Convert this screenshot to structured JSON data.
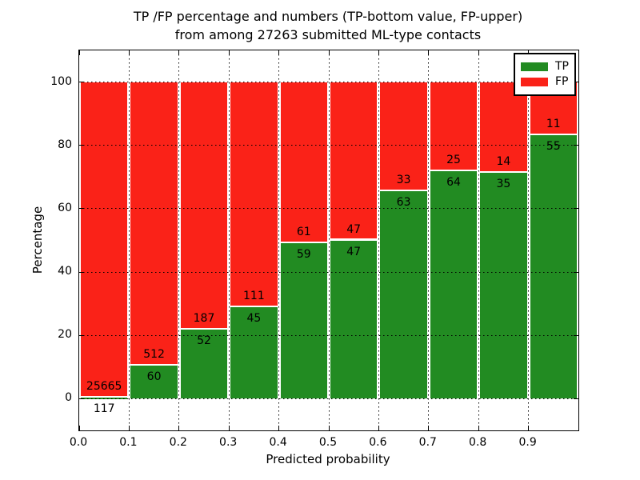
{
  "chart_data": {
    "type": "bar",
    "stacked": true,
    "orientation": "vertical",
    "title_line1": "TP /FP percentage and numbers (TP-bottom value, FP-upper)",
    "title_line2": "from among 27263 submitted ML-type contacts",
    "xlabel": "Predicted probability",
    "ylabel": "Percentage",
    "xlim": [
      0,
      1
    ],
    "ylim": [
      -10,
      110
    ],
    "grid": "dotted, drawn above bars",
    "x_ticks": [
      "0.0",
      "0.1",
      "0.2",
      "0.3",
      "0.4",
      "0.5",
      "0.6",
      "0.7",
      "0.8",
      "0.9"
    ],
    "y_ticks": [
      0,
      20,
      40,
      60,
      80,
      100
    ],
    "units": "percent of bin stacked to 100; labels show raw counts (TP below boundary, FP above)",
    "series": [
      {
        "name": "TP",
        "color": "#228b22"
      },
      {
        "name": "FP",
        "color": "#fa2218"
      }
    ],
    "bins": [
      {
        "x0": 0.0,
        "x1": 0.1,
        "tp": 117,
        "fp": 25665
      },
      {
        "x0": 0.1,
        "x1": 0.2,
        "tp": 60,
        "fp": 512
      },
      {
        "x0": 0.2,
        "x1": 0.3,
        "tp": 52,
        "fp": 187
      },
      {
        "x0": 0.3,
        "x1": 0.4,
        "tp": 45,
        "fp": 111
      },
      {
        "x0": 0.4,
        "x1": 0.5,
        "tp": 59,
        "fp": 61
      },
      {
        "x0": 0.5,
        "x1": 0.6,
        "tp": 47,
        "fp": 47
      },
      {
        "x0": 0.6,
        "x1": 0.7,
        "tp": 63,
        "fp": 33
      },
      {
        "x0": 0.7,
        "x1": 0.8,
        "tp": 64,
        "fp": 25
      },
      {
        "x0": 0.8,
        "x1": 0.9,
        "tp": 35,
        "fp": 14
      },
      {
        "x0": 0.9,
        "x1": 1.0,
        "tp": 55,
        "fp": 11
      }
    ],
    "legend": {
      "position": "upper right",
      "entries": [
        {
          "label": "TP",
          "color": "#228b22"
        },
        {
          "label": "FP",
          "color": "#fa2218"
        }
      ]
    }
  }
}
